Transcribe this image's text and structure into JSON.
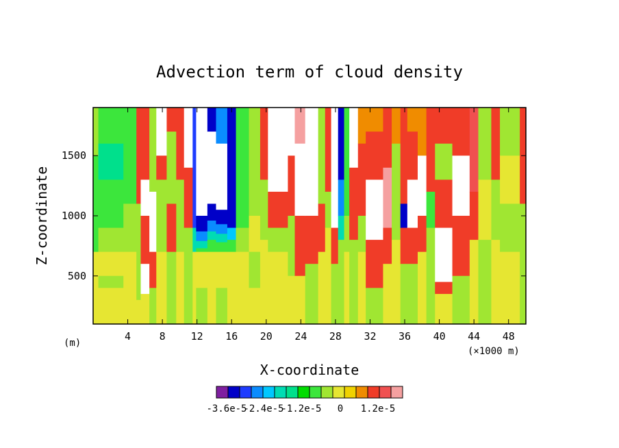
{
  "chart_data": {
    "type": "heatmap",
    "title": "Advection term of cloud density",
    "xlabel": "X-coordinate",
    "ylabel": "Z-coordinate",
    "x_unit_left": "(m)",
    "x_unit_right": "(×1000 m)",
    "xlim": [
      0,
      50
    ],
    "ylim": [
      100,
      1900
    ],
    "x_ticks": [
      4,
      8,
      12,
      16,
      20,
      24,
      28,
      32,
      36,
      40,
      44,
      48
    ],
    "y_ticks": [
      500,
      1000,
      1500
    ],
    "x_tick_labels": [
      "4",
      "8",
      "12",
      "16",
      "20",
      "24",
      "28",
      "32",
      "36",
      "40",
      "44",
      "48"
    ],
    "y_tick_labels": [
      "500",
      "1000",
      "1500"
    ],
    "colorbar": {
      "colors": [
        "#7f1fa0",
        "#0000c8",
        "#1e3cff",
        "#0a8cff",
        "#00c8ff",
        "#00dcb4",
        "#00e08c",
        "#00dc00",
        "#3ce63c",
        "#a0e632",
        "#e6e632",
        "#f0d200",
        "#f08c00",
        "#f03c28",
        "#f05050",
        "#f5a0a0"
      ],
      "tick_labels": [
        "-3.6e-5",
        "-2.4e-5",
        "-1.2e-5",
        "0",
        "1.2e-5"
      ],
      "tick_values": [
        -3.6e-05,
        -2.4e-05,
        -1.2e-05,
        0,
        1.2e-05
      ]
    },
    "columns": [
      {
        "x0": 0.0,
        "x1": 0.6,
        "bands": [
          [
            1900,
            1500,
            "#a0e632"
          ],
          [
            1500,
            700,
            "#3ce63c"
          ],
          [
            700,
            100,
            "#e6e632"
          ]
        ]
      },
      {
        "x0": 0.6,
        "x1": 3.5,
        "bands": [
          [
            1900,
            1600,
            "#3ce63c"
          ],
          [
            1600,
            1300,
            "#00e08c"
          ],
          [
            1300,
            900,
            "#3ce63c"
          ],
          [
            900,
            700,
            "#a0e632"
          ],
          [
            700,
            500,
            "#e6e632"
          ],
          [
            500,
            400,
            "#a0e632"
          ],
          [
            400,
            100,
            "#e6e632"
          ]
        ]
      },
      {
        "x0": 3.5,
        "x1": 5.0,
        "bands": [
          [
            1900,
            1100,
            "#3ce63c"
          ],
          [
            1100,
            700,
            "#a0e632"
          ],
          [
            700,
            100,
            "#e6e632"
          ]
        ]
      },
      {
        "x0": 5.0,
        "x1": 5.5,
        "bands": [
          [
            1900,
            1100,
            "#f03c28"
          ],
          [
            1100,
            300,
            "#a0e632"
          ],
          [
            300,
            100,
            "#e6e632"
          ]
        ]
      },
      {
        "x0": 5.5,
        "x1": 6.5,
        "bands": [
          [
            1900,
            1300,
            "#f03c28"
          ],
          [
            1300,
            1000,
            "#ffffff"
          ],
          [
            1000,
            600,
            "#f03c28"
          ],
          [
            600,
            350,
            "#ffffff"
          ],
          [
            350,
            100,
            "#e6e632"
          ]
        ]
      },
      {
        "x0": 6.5,
        "x1": 7.3,
        "bands": [
          [
            1900,
            1200,
            "#a0e632"
          ],
          [
            1200,
            700,
            "#ffffff"
          ],
          [
            700,
            400,
            "#f03c28"
          ],
          [
            400,
            100,
            "#a0e632"
          ]
        ]
      },
      {
        "x0": 7.3,
        "x1": 8.5,
        "bands": [
          [
            1900,
            1500,
            "#ffffff"
          ],
          [
            1500,
            1300,
            "#f03c28"
          ],
          [
            1300,
            700,
            "#a0e632"
          ],
          [
            700,
            100,
            "#e6e632"
          ]
        ]
      },
      {
        "x0": 8.5,
        "x1": 9.6,
        "bands": [
          [
            1900,
            1700,
            "#f03c28"
          ],
          [
            1700,
            1100,
            "#a0e632"
          ],
          [
            1100,
            700,
            "#f03c28"
          ],
          [
            700,
            100,
            "#a0e632"
          ]
        ]
      },
      {
        "x0": 9.6,
        "x1": 10.5,
        "bands": [
          [
            1900,
            1300,
            "#f03c28"
          ],
          [
            1300,
            700,
            "#a0e632"
          ],
          [
            700,
            100,
            "#e6e632"
          ]
        ]
      },
      {
        "x0": 10.5,
        "x1": 11.5,
        "bands": [
          [
            1900,
            1400,
            "#ffffff"
          ],
          [
            1400,
            900,
            "#f03c28"
          ],
          [
            900,
            100,
            "#a0e632"
          ]
        ]
      },
      {
        "x0": 11.5,
        "x1": 11.9,
        "bands": [
          [
            1900,
            900,
            "#1e3cff"
          ],
          [
            900,
            700,
            "#00dcb4"
          ],
          [
            700,
            100,
            "#e6e632"
          ]
        ]
      },
      {
        "x0": 11.9,
        "x1": 13.2,
        "bands": [
          [
            1900,
            1000,
            "#ffffff"
          ],
          [
            1000,
            870,
            "#0000c8"
          ],
          [
            870,
            790,
            "#0a8cff"
          ],
          [
            790,
            730,
            "#00dcb4"
          ],
          [
            730,
            700,
            "#3ce63c"
          ],
          [
            700,
            400,
            "#e6e632"
          ],
          [
            400,
            100,
            "#a0e632"
          ]
        ]
      },
      {
        "x0": 13.2,
        "x1": 14.2,
        "bands": [
          [
            1900,
            1700,
            "#0000c8"
          ],
          [
            1700,
            1100,
            "#ffffff"
          ],
          [
            1100,
            960,
            "#0000c8"
          ],
          [
            960,
            870,
            "#0a8cff"
          ],
          [
            870,
            800,
            "#00dcb4"
          ],
          [
            800,
            700,
            "#3ce63c"
          ],
          [
            700,
            100,
            "#e6e632"
          ]
        ]
      },
      {
        "x0": 14.2,
        "x1": 15.5,
        "bands": [
          [
            1900,
            1600,
            "#0a8cff"
          ],
          [
            1600,
            1050,
            "#ffffff"
          ],
          [
            1050,
            930,
            "#0000c8"
          ],
          [
            930,
            850,
            "#0a8cff"
          ],
          [
            850,
            780,
            "#00dcb4"
          ],
          [
            780,
            700,
            "#3ce63c"
          ],
          [
            700,
            400,
            "#e6e632"
          ],
          [
            400,
            100,
            "#a0e632"
          ]
        ]
      },
      {
        "x0": 15.5,
        "x1": 16.5,
        "bands": [
          [
            1900,
            900,
            "#0000c8"
          ],
          [
            900,
            800,
            "#00c8ff"
          ],
          [
            800,
            700,
            "#3ce63c"
          ],
          [
            700,
            100,
            "#e6e632"
          ]
        ]
      },
      {
        "x0": 16.5,
        "x1": 18.0,
        "bands": [
          [
            1900,
            900,
            "#3ce63c"
          ],
          [
            900,
            700,
            "#a0e632"
          ],
          [
            700,
            100,
            "#e6e632"
          ]
        ]
      },
      {
        "x0": 18.0,
        "x1": 19.3,
        "bands": [
          [
            1900,
            1000,
            "#a0e632"
          ],
          [
            1000,
            700,
            "#e6e632"
          ],
          [
            700,
            400,
            "#a0e632"
          ],
          [
            400,
            100,
            "#e6e632"
          ]
        ]
      },
      {
        "x0": 19.3,
        "x1": 20.2,
        "bands": [
          [
            1900,
            1300,
            "#f03c28"
          ],
          [
            1300,
            800,
            "#a0e632"
          ],
          [
            800,
            100,
            "#e6e632"
          ]
        ]
      },
      {
        "x0": 20.2,
        "x1": 22.5,
        "bands": [
          [
            1900,
            1200,
            "#ffffff"
          ],
          [
            1200,
            900,
            "#f03c28"
          ],
          [
            900,
            700,
            "#a0e632"
          ],
          [
            700,
            100,
            "#e6e632"
          ]
        ]
      },
      {
        "x0": 22.5,
        "x1": 23.3,
        "bands": [
          [
            1900,
            1500,
            "#ffffff"
          ],
          [
            1500,
            1000,
            "#f03c28"
          ],
          [
            1000,
            500,
            "#a0e632"
          ],
          [
            500,
            100,
            "#e6e632"
          ]
        ]
      },
      {
        "x0": 23.3,
        "x1": 24.5,
        "bands": [
          [
            1900,
            1600,
            "#f5a0a0"
          ],
          [
            1600,
            1000,
            "#ffffff"
          ],
          [
            1000,
            500,
            "#f03c28"
          ],
          [
            500,
            100,
            "#e6e632"
          ]
        ]
      },
      {
        "x0": 24.5,
        "x1": 26.0,
        "bands": [
          [
            1900,
            1000,
            "#ffffff"
          ],
          [
            1000,
            600,
            "#f03c28"
          ],
          [
            600,
            100,
            "#a0e632"
          ]
        ]
      },
      {
        "x0": 26.0,
        "x1": 26.8,
        "bands": [
          [
            1900,
            1100,
            "#a0e632"
          ],
          [
            1100,
            700,
            "#f03c28"
          ],
          [
            700,
            100,
            "#e6e632"
          ]
        ]
      },
      {
        "x0": 26.8,
        "x1": 27.5,
        "bands": [
          [
            1900,
            1200,
            "#f03c28"
          ],
          [
            1200,
            900,
            "#a0e632"
          ],
          [
            900,
            100,
            "#e6e632"
          ]
        ]
      },
      {
        "x0": 27.5,
        "x1": 28.3,
        "bands": [
          [
            1900,
            900,
            "#ffffff"
          ],
          [
            900,
            600,
            "#f03c28"
          ],
          [
            600,
            100,
            "#a0e632"
          ]
        ]
      },
      {
        "x0": 28.3,
        "x1": 29.0,
        "bands": [
          [
            1900,
            1300,
            "#0000c8"
          ],
          [
            1300,
            1000,
            "#0a8cff"
          ],
          [
            1000,
            800,
            "#00dcb4"
          ],
          [
            800,
            100,
            "#a0e632"
          ]
        ]
      },
      {
        "x0": 29.0,
        "x1": 29.6,
        "bands": [
          [
            1900,
            1000,
            "#3ce63c"
          ],
          [
            1000,
            700,
            "#a0e632"
          ],
          [
            700,
            100,
            "#e6e632"
          ]
        ]
      },
      {
        "x0": 29.6,
        "x1": 30.6,
        "bands": [
          [
            1900,
            1400,
            "#ffffff"
          ],
          [
            1400,
            800,
            "#f03c28"
          ],
          [
            800,
            100,
            "#a0e632"
          ]
        ]
      },
      {
        "x0": 30.6,
        "x1": 31.5,
        "bands": [
          [
            1900,
            1600,
            "#f08c00"
          ],
          [
            1600,
            1000,
            "#f03c28"
          ],
          [
            1000,
            700,
            "#a0e632"
          ],
          [
            700,
            100,
            "#e6e632"
          ]
        ]
      },
      {
        "x0": 31.5,
        "x1": 33.5,
        "bands": [
          [
            1900,
            1700,
            "#f08c00"
          ],
          [
            1700,
            1300,
            "#f03c28"
          ],
          [
            1300,
            800,
            "#ffffff"
          ],
          [
            800,
            400,
            "#f03c28"
          ],
          [
            400,
            100,
            "#a0e632"
          ]
        ]
      },
      {
        "x0": 33.5,
        "x1": 34.5,
        "bands": [
          [
            1900,
            1400,
            "#f03c28"
          ],
          [
            1400,
            900,
            "#f5a0a0"
          ],
          [
            900,
            600,
            "#f03c28"
          ],
          [
            600,
            100,
            "#e6e632"
          ]
        ]
      },
      {
        "x0": 34.5,
        "x1": 35.5,
        "bands": [
          [
            1900,
            1600,
            "#f08c00"
          ],
          [
            1600,
            800,
            "#a0e632"
          ],
          [
            800,
            100,
            "#e6e632"
          ]
        ]
      },
      {
        "x0": 35.5,
        "x1": 36.3,
        "bands": [
          [
            1900,
            1100,
            "#f03c28"
          ],
          [
            1100,
            900,
            "#0000c8"
          ],
          [
            900,
            600,
            "#f03c28"
          ],
          [
            600,
            100,
            "#a0e632"
          ]
        ]
      },
      {
        "x0": 36.3,
        "x1": 37.5,
        "bands": [
          [
            1900,
            1700,
            "#f08c00"
          ],
          [
            1700,
            1300,
            "#f03c28"
          ],
          [
            1300,
            900,
            "#ffffff"
          ],
          [
            900,
            600,
            "#f03c28"
          ],
          [
            600,
            100,
            "#a0e632"
          ]
        ]
      },
      {
        "x0": 37.5,
        "x1": 38.5,
        "bands": [
          [
            1900,
            1500,
            "#f08c00"
          ],
          [
            1500,
            1000,
            "#ffffff"
          ],
          [
            1000,
            700,
            "#f03c28"
          ],
          [
            700,
            100,
            "#e6e632"
          ]
        ]
      },
      {
        "x0": 38.5,
        "x1": 39.5,
        "bands": [
          [
            1900,
            1200,
            "#f03c28"
          ],
          [
            1200,
            900,
            "#3ce63c"
          ],
          [
            900,
            100,
            "#a0e632"
          ]
        ]
      },
      {
        "x0": 39.5,
        "x1": 41.5,
        "bands": [
          [
            1900,
            1600,
            "#f03c28"
          ],
          [
            1600,
            1300,
            "#a0e632"
          ],
          [
            1300,
            900,
            "#f03c28"
          ],
          [
            900,
            450,
            "#ffffff"
          ],
          [
            450,
            350,
            "#f03c28"
          ],
          [
            350,
            100,
            "#e6e632"
          ]
        ]
      },
      {
        "x0": 41.5,
        "x1": 43.5,
        "bands": [
          [
            1900,
            1500,
            "#f03c28"
          ],
          [
            1500,
            1000,
            "#ffffff"
          ],
          [
            1000,
            500,
            "#f03c28"
          ],
          [
            500,
            100,
            "#a0e632"
          ]
        ]
      },
      {
        "x0": 43.5,
        "x1": 44.5,
        "bands": [
          [
            1900,
            1200,
            "#f05050"
          ],
          [
            1200,
            800,
            "#f03c28"
          ],
          [
            800,
            100,
            "#e6e632"
          ]
        ]
      },
      {
        "x0": 44.5,
        "x1": 46.0,
        "bands": [
          [
            1900,
            1300,
            "#a0e632"
          ],
          [
            1300,
            800,
            "#e6e632"
          ],
          [
            800,
            100,
            "#a0e632"
          ]
        ]
      },
      {
        "x0": 46.0,
        "x1": 47.0,
        "bands": [
          [
            1900,
            1300,
            "#f03c28"
          ],
          [
            1300,
            800,
            "#a0e632"
          ],
          [
            800,
            100,
            "#e6e632"
          ]
        ]
      },
      {
        "x0": 47.0,
        "x1": 49.3,
        "bands": [
          [
            1900,
            1500,
            "#a0e632"
          ],
          [
            1500,
            1100,
            "#e6e632"
          ],
          [
            1100,
            700,
            "#a0e632"
          ],
          [
            700,
            100,
            "#e6e632"
          ]
        ]
      },
      {
        "x0": 49.3,
        "x1": 50.0,
        "bands": [
          [
            1900,
            1100,
            "#f03c28"
          ],
          [
            1100,
            100,
            "#a0e632"
          ]
        ]
      }
    ]
  }
}
